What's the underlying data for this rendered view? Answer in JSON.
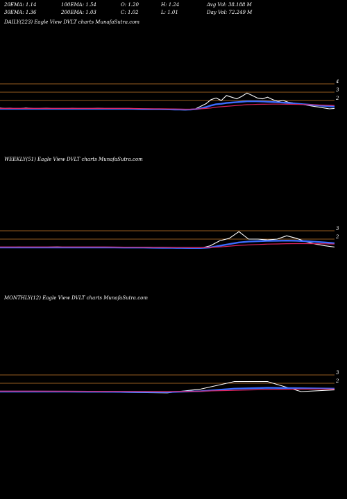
{
  "header": {
    "row1": [
      "20EMA: 1.14",
      "100EMA: 1.54",
      "O: 1.20",
      "H: 1.24",
      "Avg Vol: 38.188  M"
    ],
    "row2": [
      "30EMA: 1.36",
      "200EMA: 1.03",
      "C: 1.02",
      "L: 1.01",
      "Day Vol: 72.249  M"
    ]
  },
  "colors": {
    "background": "#000000",
    "price": "#ffffff",
    "ema_blue": "#3a6cff",
    "ema_red": "#e0245e",
    "level_line": "#c87a2a"
  },
  "chart_data": [
    {
      "type": "line",
      "label": "DAILY(223) Eagle   View  DVLT charts MunafaSutra.com",
      "y_ticks": [
        "4",
        "3",
        "2"
      ],
      "ylim": [
        0,
        4.5
      ],
      "series": [
        {
          "values": [
            1.1,
            1.05,
            1.08,
            1.0,
            1.04,
            1.1,
            1.06,
            1.02,
            1.05,
            1.08,
            1.03,
            1.0,
            0.98,
            1.02,
            1.06,
            1.04,
            1.0,
            0.98,
            1.03,
            1.07,
            1.05,
            1.01,
            0.98,
            0.96,
            1.0,
            1.04,
            1.02,
            0.98,
            0.95,
            0.92,
            0.96,
            1.0,
            0.98,
            0.94,
            0.9,
            0.88,
            0.86,
            0.9,
            1.0,
            1.3,
            1.6,
            2.1,
            2.3,
            2.0,
            2.6,
            2.4,
            2.2,
            2.5,
            2.9,
            2.6,
            2.3,
            2.2,
            2.4,
            2.1,
            1.9,
            2.0,
            1.8,
            1.7,
            1.6,
            1.5,
            1.4,
            1.3,
            1.2,
            1.1,
            1.0,
            1.05
          ]
        },
        {
          "values": [
            1.0,
            1.0,
            1.0,
            1.0,
            1.0,
            1.0,
            1.0,
            1.0,
            1.0,
            1.0,
            1.0,
            1.0,
            1.0,
            1.0,
            1.0,
            1.0,
            1.0,
            1.0,
            1.0,
            1.0,
            1.0,
            1.0,
            1.0,
            1.0,
            1.0,
            1.0,
            0.98,
            0.97,
            0.96,
            0.95,
            0.95,
            0.95,
            0.94,
            0.93,
            0.92,
            0.91,
            0.9,
            0.91,
            0.95,
            1.05,
            1.2,
            1.4,
            1.55,
            1.6,
            1.7,
            1.75,
            1.8,
            1.85,
            1.9,
            1.9,
            1.9,
            1.88,
            1.85,
            1.82,
            1.78,
            1.74,
            1.7,
            1.65,
            1.6,
            1.55,
            1.5,
            1.45,
            1.4,
            1.35,
            1.3,
            1.25
          ]
        },
        {
          "values": [
            1.05,
            1.05,
            1.05,
            1.05,
            1.05,
            1.05,
            1.05,
            1.05,
            1.05,
            1.05,
            1.05,
            1.05,
            1.05,
            1.05,
            1.05,
            1.05,
            1.05,
            1.05,
            1.05,
            1.05,
            1.05,
            1.05,
            1.05,
            1.05,
            1.05,
            1.05,
            1.04,
            1.03,
            1.02,
            1.01,
            1.0,
            1.0,
            1.0,
            0.99,
            0.98,
            0.97,
            0.96,
            0.96,
            0.98,
            1.0,
            1.05,
            1.1,
            1.2,
            1.25,
            1.3,
            1.35,
            1.4,
            1.45,
            1.5,
            1.52,
            1.54,
            1.55,
            1.56,
            1.57,
            1.57,
            1.56,
            1.55,
            1.54,
            1.53,
            1.52,
            1.5,
            1.48,
            1.46,
            1.44,
            1.42,
            1.4
          ]
        }
      ]
    },
    {
      "type": "line",
      "label": "WEEKLY(51) Eagle   View  DVLT charts MunafaSutra.com",
      "y_ticks": [
        "3",
        "2"
      ],
      "ylim": [
        0,
        3.5
      ],
      "series": [
        {
          "values": [
            1.0,
            1.02,
            1.05,
            1.0,
            0.98,
            1.03,
            1.08,
            1.0,
            0.97,
            1.0,
            1.02,
            0.98,
            0.96,
            0.98,
            1.02,
            1.04,
            1.0,
            0.97,
            0.95,
            0.92,
            0.9,
            0.92,
            1.2,
            1.8,
            2.1,
            2.9,
            2.0,
            2.0,
            1.9,
            2.0,
            2.4,
            2.1,
            1.7,
            1.4,
            1.2,
            1.05
          ]
        },
        {
          "values": [
            1.0,
            1.0,
            1.0,
            1.0,
            1.0,
            1.0,
            1.0,
            1.0,
            1.0,
            1.0,
            1.0,
            1.0,
            0.99,
            0.98,
            0.98,
            0.98,
            0.97,
            0.96,
            0.95,
            0.94,
            0.93,
            0.93,
            1.0,
            1.2,
            1.4,
            1.6,
            1.7,
            1.75,
            1.78,
            1.8,
            1.82,
            1.8,
            1.75,
            1.68,
            1.6,
            1.5
          ]
        },
        {
          "values": [
            1.05,
            1.05,
            1.05,
            1.05,
            1.05,
            1.05,
            1.05,
            1.05,
            1.05,
            1.05,
            1.05,
            1.05,
            1.04,
            1.03,
            1.02,
            1.01,
            1.0,
            1.0,
            0.99,
            0.98,
            0.97,
            0.97,
            1.0,
            1.05,
            1.15,
            1.25,
            1.3,
            1.35,
            1.4,
            1.42,
            1.45,
            1.46,
            1.46,
            1.45,
            1.43,
            1.4
          ]
        }
      ]
    },
    {
      "type": "line",
      "label": "MONTHLY(12) Eagle   View  DVLT charts MunafaSutra.com",
      "y_ticks": [
        "3",
        "2"
      ],
      "ylim": [
        0,
        3.5
      ],
      "series": [
        {
          "values": [
            1.0,
            0.98,
            0.96,
            0.95,
            0.9,
            0.85,
            1.3,
            2.2,
            2.2,
            1.0,
            1.2
          ]
        },
        {
          "values": [
            1.0,
            1.0,
            0.99,
            0.98,
            0.96,
            0.94,
            1.05,
            1.35,
            1.45,
            1.4,
            1.35
          ]
        },
        {
          "values": [
            1.05,
            1.05,
            1.04,
            1.03,
            1.02,
            1.0,
            1.05,
            1.15,
            1.25,
            1.3,
            1.3
          ]
        }
      ]
    }
  ]
}
